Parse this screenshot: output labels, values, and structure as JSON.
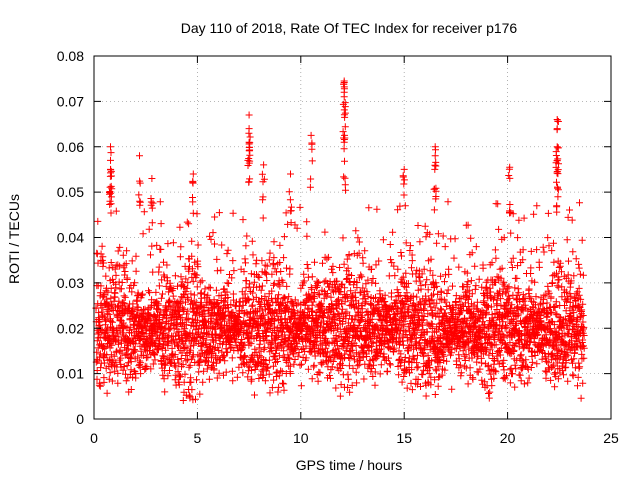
{
  "chart_data": {
    "type": "scatter",
    "title": "Day 110 of 2018, Rate Of TEC Index for receiver p176",
    "xlabel": "GPS time / hours",
    "ylabel": "ROTI / TECUs",
    "xlim": [
      0,
      25
    ],
    "ylim": [
      0,
      0.08
    ],
    "xticks": [
      0,
      5,
      10,
      15,
      20,
      25
    ],
    "xtick_labels": [
      "0",
      "5",
      "10",
      "15",
      "20",
      "25"
    ],
    "yticks": [
      0,
      0.01,
      0.02,
      0.03,
      0.04,
      0.05,
      0.06,
      0.07,
      0.08
    ],
    "ytick_labels": [
      "0",
      "0.01",
      "0.02",
      "0.03",
      "0.04",
      "0.05",
      "0.06",
      "0.07",
      "0.08"
    ],
    "grid": true,
    "marker": "+",
    "color": "#ff0000",
    "series": [
      {
        "name": "ROTI",
        "x_range": [
          0.1,
          23.7
        ],
        "typical_range": [
          0.006,
          0.035
        ],
        "dense_core": [
          0.01,
          0.03
        ],
        "notable_points": [
          {
            "x": 0.8,
            "y": 0.06
          },
          {
            "x": 0.8,
            "y": 0.057
          },
          {
            "x": 0.8,
            "y": 0.055
          },
          {
            "x": 2.2,
            "y": 0.058
          },
          {
            "x": 2.8,
            "y": 0.053
          },
          {
            "x": 4.8,
            "y": 0.054
          },
          {
            "x": 7.5,
            "y": 0.067
          },
          {
            "x": 7.5,
            "y": 0.064
          },
          {
            "x": 7.5,
            "y": 0.061
          },
          {
            "x": 8.2,
            "y": 0.056
          },
          {
            "x": 9.5,
            "y": 0.054
          },
          {
            "x": 10.5,
            "y": 0.0625
          },
          {
            "x": 12.1,
            "y": 0.0745
          },
          {
            "x": 12.1,
            "y": 0.072
          },
          {
            "x": 12.1,
            "y": 0.071
          },
          {
            "x": 12.1,
            "y": 0.061
          },
          {
            "x": 15.0,
            "y": 0.055
          },
          {
            "x": 16.5,
            "y": 0.06
          },
          {
            "x": 16.5,
            "y": 0.058
          },
          {
            "x": 20.1,
            "y": 0.0555
          },
          {
            "x": 22.4,
            "y": 0.066
          },
          {
            "x": 22.4,
            "y": 0.064
          },
          {
            "x": 22.4,
            "y": 0.06
          },
          {
            "x": 22.4,
            "y": 0.057
          }
        ]
      }
    ]
  }
}
